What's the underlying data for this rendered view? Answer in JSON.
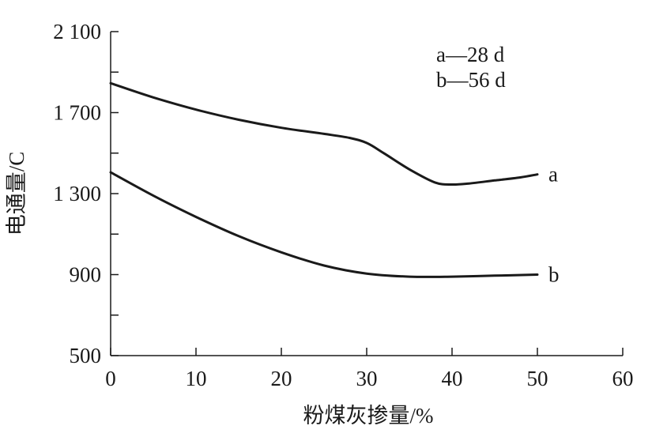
{
  "chart_data": {
    "type": "line",
    "title": "",
    "xlabel": "粉煤灰掺量/%",
    "ylabel": "电通量/C",
    "xlim": [
      0,
      60
    ],
    "ylim": [
      500,
      2100
    ],
    "x_ticks": [
      0,
      10,
      20,
      30,
      40,
      50,
      60
    ],
    "x_tick_labels": [
      "0",
      "10",
      "20",
      "30",
      "40",
      "50",
      "60"
    ],
    "y_ticks": [
      500,
      900,
      1300,
      1700,
      2100
    ],
    "y_tick_labels": [
      "500",
      "900",
      "1 300",
      "1 700",
      "2 100"
    ],
    "y_minor_ticks": [
      700,
      1100,
      1500,
      1900
    ],
    "grid": false,
    "legend_position": "top-right",
    "legend": [
      {
        "text": "a—28 d"
      },
      {
        "text": "b—56 d"
      }
    ],
    "series": [
      {
        "name": "a",
        "end_label": "a",
        "x": [
          0,
          5,
          10,
          15,
          20,
          25,
          28,
          30,
          32,
          35,
          38,
          40,
          42,
          45,
          48,
          50
        ],
        "y": [
          1845,
          1775,
          1715,
          1665,
          1625,
          1595,
          1575,
          1550,
          1500,
          1420,
          1355,
          1345,
          1350,
          1365,
          1380,
          1395
        ]
      },
      {
        "name": "b",
        "end_label": "b",
        "x": [
          0,
          5,
          10,
          15,
          20,
          25,
          30,
          35,
          40,
          45,
          50
        ],
        "y": [
          1405,
          1290,
          1185,
          1090,
          1010,
          945,
          905,
          890,
          890,
          895,
          900
        ]
      }
    ]
  }
}
